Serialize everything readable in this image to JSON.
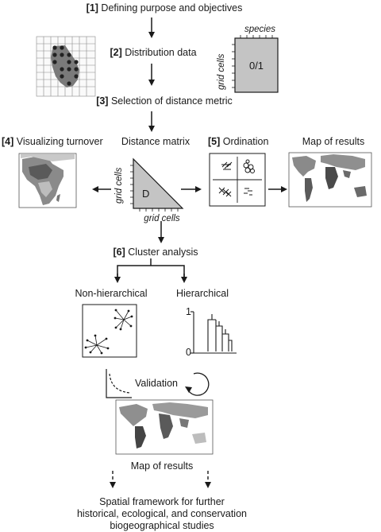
{
  "steps": {
    "s1": {
      "num": "[1]",
      "text": "Defining purpose and objectives"
    },
    "s2": {
      "num": "[2]",
      "text": "Distribution data"
    },
    "s3": {
      "num": "[3]",
      "text": "Selection of distance metric"
    },
    "s4": {
      "num": "[4]",
      "text": "Visualizing turnover"
    },
    "s5": {
      "num": "[5]",
      "text": "Ordination"
    },
    "s6": {
      "num": "[6]",
      "text": "Cluster analysis"
    }
  },
  "labels": {
    "distance_matrix": "Distance matrix",
    "map_of_results_top": "Map of results",
    "non_hierarchical": "Non-hierarchical",
    "hierarchical": "Hierarchical",
    "validation": "Validation",
    "map_of_results_bottom": "Map of results",
    "final_line1": "Spatial framework for further",
    "final_line2": "historical, ecological, and conservation",
    "final_line3": "biogeographical studies"
  },
  "matrix_box": {
    "species": "species",
    "grid_cells": "grid cells",
    "value": "0/1"
  },
  "distance_triangle": {
    "grid_cells_v": "grid cells",
    "grid_cells_h": "grid cells",
    "value": "D"
  },
  "dendrogram": {
    "top_tick": "1",
    "bottom_tick": "0"
  }
}
